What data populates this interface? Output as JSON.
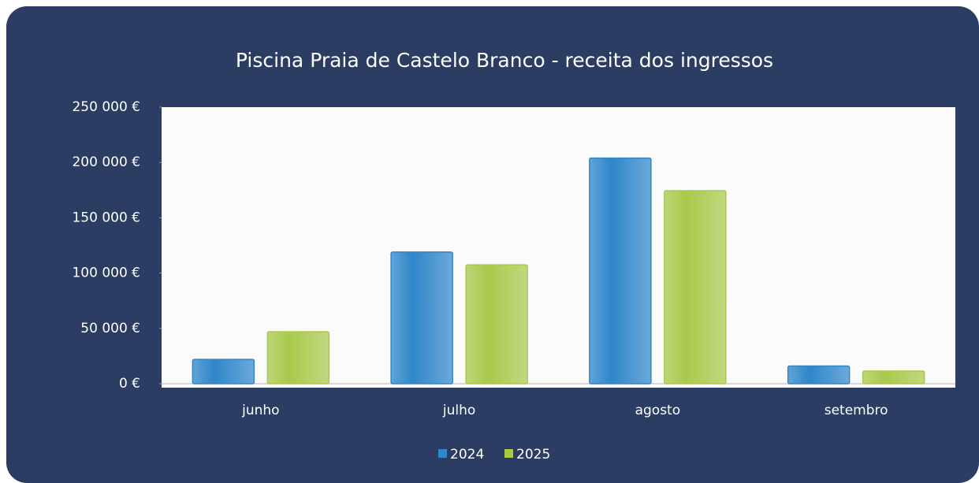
{
  "chart_data": {
    "type": "bar",
    "title": "Piscina Praia de Castelo Branco - receita  dos ingressos",
    "categories": [
      "junho",
      "julho",
      "agosto",
      "setembro"
    ],
    "series": [
      {
        "name": "2024",
        "color": "#2f86c9",
        "values": [
          22000,
          119000,
          204000,
          16000
        ]
      },
      {
        "name": "2025",
        "color": "#a9c94b",
        "values": [
          47000,
          107500,
          174500,
          11500
        ]
      }
    ],
    "ylim": [
      0,
      250000
    ],
    "yticks": [
      {
        "value": 0,
        "label": "0 €"
      },
      {
        "value": 50000,
        "label": "50 000 €"
      },
      {
        "value": 100000,
        "label": "100 000 €"
      },
      {
        "value": 150000,
        "label": "150 000 €"
      },
      {
        "value": 200000,
        "label": "200 000 €"
      },
      {
        "value": 250000,
        "label": "250 000 €"
      }
    ],
    "legend": "bottom"
  }
}
